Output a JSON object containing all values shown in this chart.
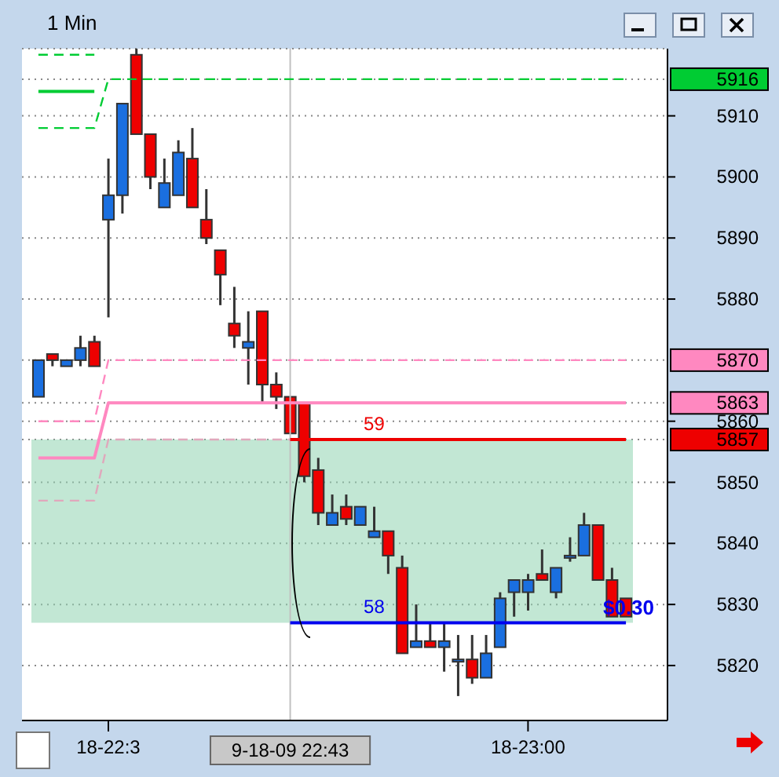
{
  "chart_data": {
    "type": "candlestick",
    "title": "1 Min",
    "categories": [
      null,
      null,
      null,
      null,
      null,
      "18-22:3",
      null,
      null,
      null,
      null,
      null,
      null,
      null,
      null,
      null,
      null,
      null,
      null,
      "9-18-09 22:43",
      null,
      null,
      null,
      null,
      null,
      null,
      null,
      null,
      null,
      null,
      null,
      null,
      null,
      null,
      null,
      null,
      "18-23:00",
      null,
      null,
      null,
      null,
      null,
      null,
      null
    ],
    "ohlc": [
      [
        5864,
        5870,
        5864,
        5870
      ],
      [
        5871,
        5871,
        5869,
        5870
      ],
      [
        5869,
        5870,
        5869,
        5870
      ],
      [
        5870,
        5874,
        5869,
        5872
      ],
      [
        5873,
        5874,
        5869,
        5869
      ],
      [
        5893,
        5903,
        5877,
        5897
      ],
      [
        5897,
        5912,
        5894,
        5912
      ],
      [
        5920,
        5921,
        5907,
        5907
      ],
      [
        5907,
        5907,
        5898,
        5900
      ],
      [
        5895,
        5903,
        5895,
        5899
      ],
      [
        5897,
        5906,
        5897,
        5904
      ],
      [
        5903,
        5908,
        5895,
        5895
      ],
      [
        5893,
        5898,
        5889,
        5890
      ],
      [
        5888,
        5888,
        5879,
        5884
      ],
      [
        5876,
        5882,
        5872,
        5874
      ],
      [
        5872,
        5878,
        5866,
        5873
      ],
      [
        5878,
        5878,
        5863,
        5866
      ],
      [
        5866,
        5868,
        5862,
        5864
      ],
      [
        5864,
        5864,
        5858,
        5858
      ],
      [
        5863,
        5863,
        5850,
        5851
      ],
      [
        5852,
        5854,
        5843,
        5845
      ],
      [
        5843,
        5848,
        5843,
        5845
      ],
      [
        5846,
        5848,
        5843,
        5844
      ],
      [
        5843,
        5846,
        5843,
        5846
      ],
      [
        5841,
        5846,
        5841,
        5842
      ],
      [
        5842,
        5842,
        5835,
        5838
      ],
      [
        5836,
        5838,
        5822,
        5822
      ],
      [
        5823,
        5830,
        5823,
        5824
      ],
      [
        5824,
        5827,
        5823,
        5823
      ],
      [
        5823,
        5827,
        5819,
        5824
      ],
      [
        5821,
        5825,
        5815,
        5821
      ],
      [
        5821,
        5825,
        5817,
        5818
      ],
      [
        5818,
        5825,
        5818,
        5822
      ],
      [
        5823,
        5832,
        5823,
        5831
      ],
      [
        5832,
        5834,
        5828,
        5834
      ],
      [
        5832,
        5835,
        5829,
        5834
      ],
      [
        5835,
        5839,
        5834,
        5834
      ],
      [
        5832,
        5836,
        5831,
        5836
      ],
      [
        5838,
        5841,
        5837,
        5838
      ],
      [
        5838,
        5845,
        5838,
        5843
      ],
      [
        5843,
        5843,
        5834,
        5834
      ],
      [
        5834,
        5836,
        5828,
        5828
      ],
      [
        5831,
        5831,
        5828,
        5828
      ]
    ],
    "colors": [
      "#1a6fe0",
      "#ee0000",
      "#1a6fe0",
      "#1a6fe0",
      "#ee0000",
      "#1a6fe0",
      "#1a6fe0",
      "#ee0000",
      "#ee0000",
      "#1a6fe0",
      "#1a6fe0",
      "#ee0000",
      "#ee0000",
      "#ee0000",
      "#ee0000",
      "#1a6fe0",
      "#ee0000",
      "#ee0000",
      "#ee0000",
      "#ee0000",
      "#ee0000",
      "#1a6fe0",
      "#ee0000",
      "#1a6fe0",
      "#1a6fe0",
      "#ee0000",
      "#ee0000",
      "#1a6fe0",
      "#ee0000",
      "#1a6fe0",
      "#1a6fe0",
      "#ee0000",
      "#1a6fe0",
      "#1a6fe0",
      "#1a6fe0",
      "#1a6fe0",
      "#ee0000",
      "#1a6fe0",
      "#1a6fe0",
      "#1a6fe0",
      "#ee0000",
      "#ee0000",
      "#ee0000"
    ],
    "series": [
      {
        "type": "line",
        "color": "#00cc33",
        "line_style": "dashed",
        "values": [
          5920,
          5920,
          5920,
          5920,
          5920,
          null,
          null,
          null,
          null,
          null,
          null,
          null,
          null,
          null,
          null,
          null,
          null,
          null,
          null,
          null,
          null,
          null,
          null,
          null,
          null,
          null,
          null,
          null,
          null,
          null,
          null,
          null,
          null,
          null,
          null,
          null,
          null,
          null,
          null,
          null,
          null,
          null,
          null
        ]
      },
      {
        "type": "line",
        "color": "#00cc33",
        "line_style": "solid",
        "values": [
          5914,
          5914,
          5914,
          5914,
          5914,
          null,
          null,
          null,
          null,
          null,
          null,
          null,
          null,
          null,
          null,
          null,
          null,
          null,
          null,
          null,
          null,
          null,
          null,
          null,
          null,
          null,
          null,
          null,
          null,
          null,
          null,
          null,
          null,
          null,
          null,
          null,
          null,
          null,
          null,
          null,
          null,
          null,
          null
        ]
      },
      {
        "type": "line",
        "color": "#00cc33",
        "line_style": "dashed",
        "values": [
          5908,
          5908,
          5908,
          5908,
          5908,
          5916,
          5916,
          5916,
          5916,
          5916,
          5916,
          5916,
          5916,
          5916,
          5916,
          5916,
          5916,
          5916,
          5916,
          5916,
          5916,
          5916,
          5916,
          5916,
          5916,
          5916,
          5916,
          5916,
          5916,
          5916,
          5916,
          5916,
          5916,
          5916,
          5916,
          5916,
          5916,
          5916,
          5916,
          5916,
          5916,
          5916,
          5916
        ]
      },
      {
        "type": "line",
        "color": "#ff88c0",
        "line_style": "dashed",
        "values": [
          5860,
          5860,
          5860,
          5860,
          5860,
          5870,
          5870,
          5870,
          5870,
          5870,
          5870,
          5870,
          5870,
          5870,
          5870,
          5870,
          5870,
          5870,
          5870,
          5870,
          5870,
          5870,
          5870,
          5870,
          5870,
          5870,
          5870,
          5870,
          5870,
          5870,
          5870,
          5870,
          5870,
          5870,
          5870,
          5870,
          5870,
          5870,
          5870,
          5870,
          5870,
          5870,
          5870
        ]
      },
      {
        "type": "line",
        "color": "#ff88c0",
        "line_style": "solid",
        "values": [
          5854,
          5854,
          5854,
          5854,
          5854,
          5863,
          5863,
          5863,
          5863,
          5863,
          5863,
          5863,
          5863,
          5863,
          5863,
          5863,
          5863,
          5863,
          5863,
          5863,
          5863,
          5863,
          5863,
          5863,
          5863,
          5863,
          5863,
          5863,
          5863,
          5863,
          5863,
          5863,
          5863,
          5863,
          5863,
          5863,
          5863,
          5863,
          5863,
          5863,
          5863,
          5863,
          5863
        ]
      },
      {
        "type": "line",
        "color": "#e0a8bc",
        "line_style": "dashed",
        "values": [
          5847,
          5847,
          5847,
          5847,
          5847,
          5857,
          5857,
          5857,
          5857,
          5857,
          5857,
          5857,
          5857,
          5857,
          5857,
          5857,
          5857,
          5857,
          5857,
          null,
          null,
          null,
          null,
          null,
          null,
          null,
          null,
          null,
          null,
          null,
          null,
          null,
          null,
          null,
          null,
          null,
          null,
          null,
          null,
          null,
          null,
          null,
          null
        ]
      },
      {
        "type": "line",
        "name": "59",
        "color": "#ee0000",
        "line_style": "solid",
        "values": [
          null,
          null,
          null,
          null,
          null,
          null,
          null,
          null,
          null,
          null,
          null,
          null,
          null,
          null,
          null,
          null,
          null,
          null,
          5857,
          5857,
          5857,
          5857,
          5857,
          5857,
          5857,
          5857,
          5857,
          5857,
          5857,
          5857,
          5857,
          5857,
          5857,
          5857,
          5857,
          5857,
          5857,
          5857,
          5857,
          5857,
          5857,
          5857,
          5857
        ]
      },
      {
        "type": "line",
        "name": "58",
        "color": "#0000ee",
        "line_style": "solid",
        "values": [
          null,
          null,
          null,
          null,
          null,
          null,
          null,
          null,
          null,
          null,
          null,
          null,
          null,
          null,
          null,
          null,
          null,
          null,
          5827,
          5827,
          5827,
          5827,
          5827,
          5827,
          5827,
          5827,
          5827,
          5827,
          5827,
          5827,
          5827,
          5827,
          5827,
          5827,
          5827,
          5827,
          5827,
          5827,
          5827,
          5827,
          5827,
          5827,
          5827
        ]
      }
    ],
    "bands": [
      {
        "axis": "y",
        "from": 5827,
        "to": 5857,
        "color": "#8fd3b0"
      }
    ],
    "ref_lines": [
      {
        "axis": "x",
        "value": "9-18-09 22:43",
        "color": "#c0c0c0"
      }
    ],
    "annotations": [
      "$0.30"
    ],
    "ylim": [
      5811,
      5921
    ],
    "yticks": [
      5820,
      5830,
      5840,
      5850,
      5857,
      5860,
      5863,
      5870,
      5880,
      5890,
      5900,
      5910,
      5916
    ],
    "grid": "y"
  }
}
